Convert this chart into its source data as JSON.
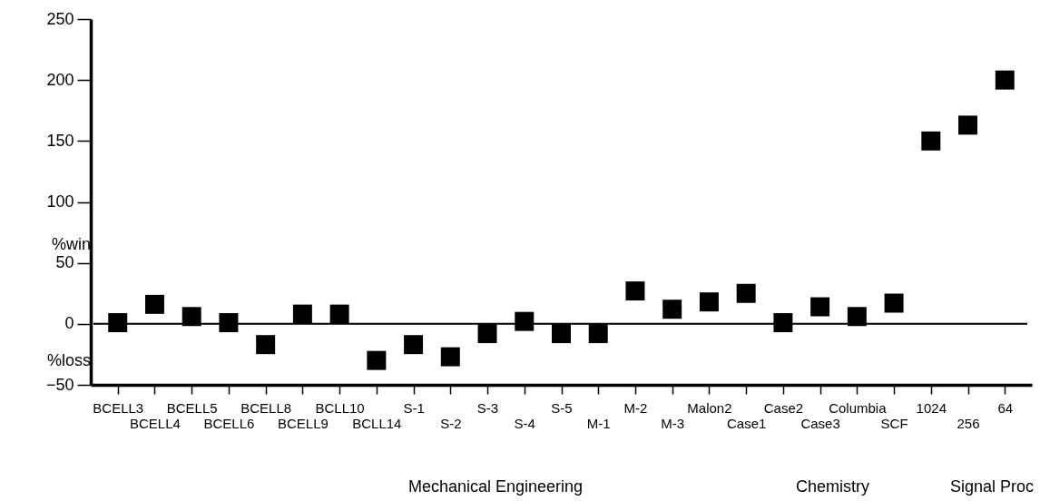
{
  "chart_data": {
    "type": "scatter",
    "categories": [
      "BCELL3",
      "BCELL4",
      "BCELL5",
      "BCELL6",
      "BCELL8",
      "BCELL9",
      "BCLL10",
      "BCLL14",
      "S-1",
      "S-2",
      "S-3",
      "S-4",
      "S-5",
      "M-1",
      "M-2",
      "M-3",
      "Malon2",
      "Case1",
      "Case2",
      "Case3",
      "Columbia",
      "SCF",
      "1024",
      "256",
      "64"
    ],
    "series": [
      {
        "color": "#000000",
        "values": [
          1,
          16,
          6,
          1,
          -17,
          8,
          8,
          -30,
          -17,
          -27,
          -8,
          2,
          -8,
          -8,
          27,
          12,
          18,
          25,
          1,
          14,
          6,
          17,
          150,
          163,
          200
        ]
      }
    ],
    "ylim": [
      -50,
      250
    ],
    "yticks": [
      -50,
      0,
      50,
      100,
      150,
      200,
      250
    ],
    "grid": false,
    "marker": "square",
    "ref_lines": [
      {
        "axis": "y",
        "value": 0,
        "color": "#000000"
      }
    ],
    "annotations": [
      "%win",
      "%loss",
      "Mechanical Engineering",
      "Chemistry",
      "Signal Proc"
    ]
  }
}
